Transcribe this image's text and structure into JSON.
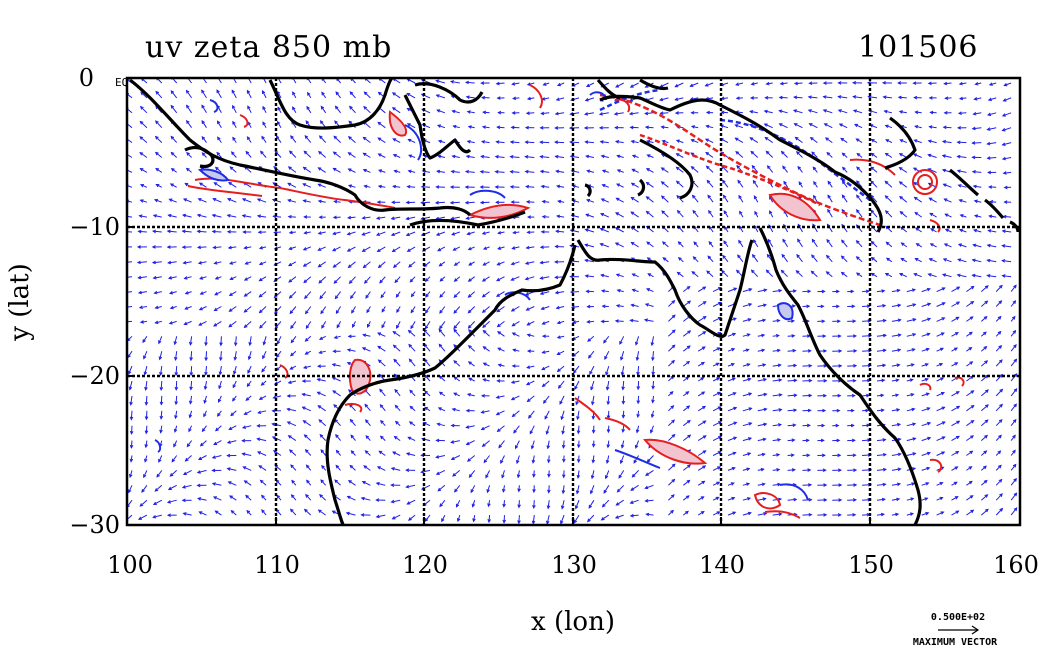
{
  "title_left": "uv zeta 850 mb",
  "title_right": "101506",
  "chart_data": {
    "type": "vector-field-map",
    "x_label": "x (lon)",
    "y_label": "y (lat)",
    "xlim": [
      100,
      160
    ],
    "ylim": [
      -30,
      0
    ],
    "x_ticks": [
      "100",
      "110",
      "120",
      "130",
      "140",
      "150",
      "160"
    ],
    "y_ticks": [
      "0",
      "−10",
      "−20",
      "−30"
    ],
    "equator_label": "EQ",
    "grid": true,
    "vector_legend": {
      "value": "0.500E+02",
      "label": "MAXIMUM VECTOR"
    },
    "colors": {
      "vectors": "#1f1fe6",
      "positive_contour": "#e61e1e",
      "negative_contour": "#1e2ee6",
      "positive_fill": "#f2c4cf",
      "negative_fill": "#c7c9ee",
      "coast": "#000000"
    }
  }
}
